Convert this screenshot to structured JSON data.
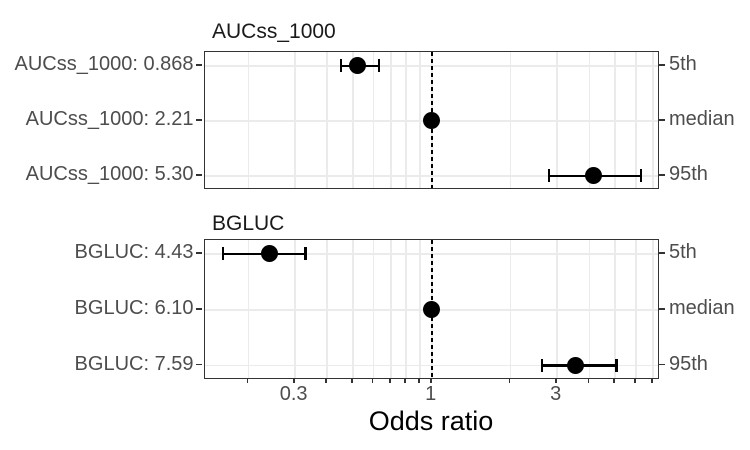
{
  "chart_data": {
    "type": "scatter",
    "subtype": "forest-plot-dot-errorbar",
    "xlabel": "Odds ratio",
    "x_scale": "log10",
    "x_domain": [
      0.1365,
      7.4
    ],
    "reference_line": 1,
    "x_ticks": [
      {
        "value": 0.3,
        "label": "0.3"
      },
      {
        "value": 1,
        "label": "1"
      },
      {
        "value": 3,
        "label": "3"
      }
    ],
    "x_gridlines": [
      0.2,
      0.3,
      0.4,
      0.5,
      0.6,
      0.7,
      0.8,
      0.9,
      1,
      2,
      3,
      4,
      5,
      6,
      7
    ],
    "panels": [
      {
        "title": "AUCss_1000",
        "rows": [
          {
            "label": "AUCss_1000: 0.868",
            "covariate_value": 0.868,
            "percentile": "5th",
            "or": 0.52,
            "lo": 0.45,
            "hi": 0.63
          },
          {
            "label": "AUCss_1000: 2.21",
            "covariate_value": 2.21,
            "percentile": "median",
            "or": 1.0,
            "lo": 1.0,
            "hi": 1.0
          },
          {
            "label": "AUCss_1000: 5.30",
            "covariate_value": 5.3,
            "percentile": "95th",
            "or": 4.15,
            "lo": 2.8,
            "hi": 6.3
          }
        ]
      },
      {
        "title": "BGLUC",
        "rows": [
          {
            "label": "BGLUC: 4.43",
            "covariate_value": 4.43,
            "percentile": "5th",
            "or": 0.24,
            "lo": 0.16,
            "hi": 0.33
          },
          {
            "label": "BGLUC: 6.10",
            "covariate_value": 6.1,
            "percentile": "median",
            "or": 1.0,
            "lo": 1.0,
            "hi": 1.0
          },
          {
            "label": "BGLUC: 7.59",
            "covariate_value": 7.59,
            "percentile": "95th",
            "or": 3.55,
            "lo": 2.64,
            "hi": 5.07
          }
        ]
      }
    ]
  },
  "colors": {
    "background": "#ffffff",
    "point": "#000000",
    "error_bar": "#000000",
    "reference_line": "#000000",
    "gridline": "#ebebeb",
    "panel_border": "#333333",
    "axis_tick": "#333333",
    "axis_text": "#4d4d4d",
    "title_text": "#1a1a1a"
  }
}
